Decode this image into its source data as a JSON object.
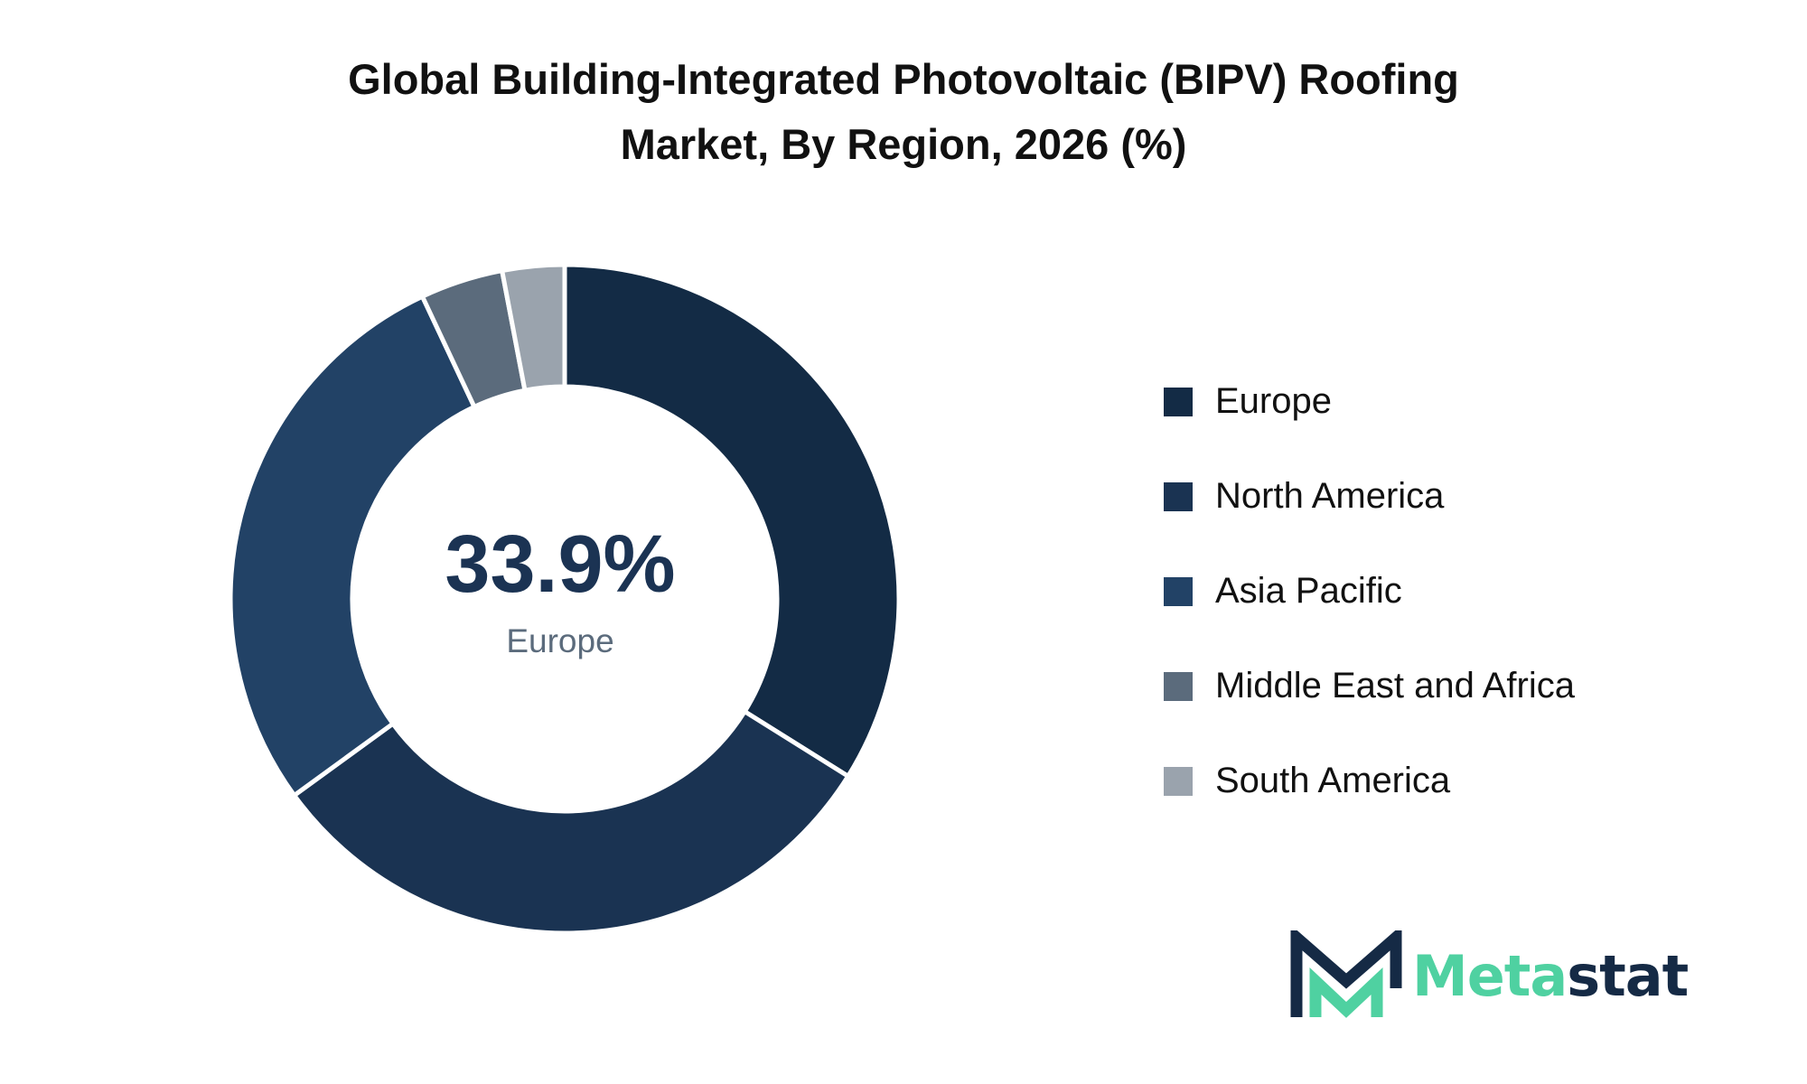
{
  "colors": {
    "europe": "#132b45",
    "north_america": "#1a3352",
    "asia_pacific": "#224266",
    "middle_east_africa": "#5b6b7c",
    "south_america": "#9aa3ad",
    "title": "#111111",
    "center_value": "#1b3353",
    "center_label": "#5b6b7c",
    "logo_dark": "#152a45",
    "logo_accent": "#4fd1a1"
  },
  "center": {
    "value": "33.9%",
    "label": "Europe"
  },
  "logo": {
    "icon": "metastat-m-logo-icon",
    "text_accent": "Meta",
    "text_dark": "stat"
  },
  "chart_data": {
    "type": "pie",
    "title_lines": [
      "Global Building-Integrated Photovoltaic (BIPV) Roofing",
      "Market, By Region, 2026 (%)"
    ],
    "donut": true,
    "legend_position": "right",
    "categories": [
      "Europe",
      "North America",
      "Asia Pacific",
      "Middle East and Africa",
      "South America"
    ],
    "values": [
      33.9,
      31.1,
      28.0,
      4.0,
      3.0
    ],
    "series": [
      {
        "name": "Europe",
        "value": 33.9,
        "color": "#132b45"
      },
      {
        "name": "North America",
        "value": 31.1,
        "color": "#1a3352"
      },
      {
        "name": "Asia Pacific",
        "value": 28.0,
        "color": "#224266"
      },
      {
        "name": "Middle East and Africa",
        "value": 4.0,
        "color": "#5b6b7c"
      },
      {
        "name": "South America",
        "value": 3.0,
        "color": "#9aa3ad"
      }
    ]
  }
}
